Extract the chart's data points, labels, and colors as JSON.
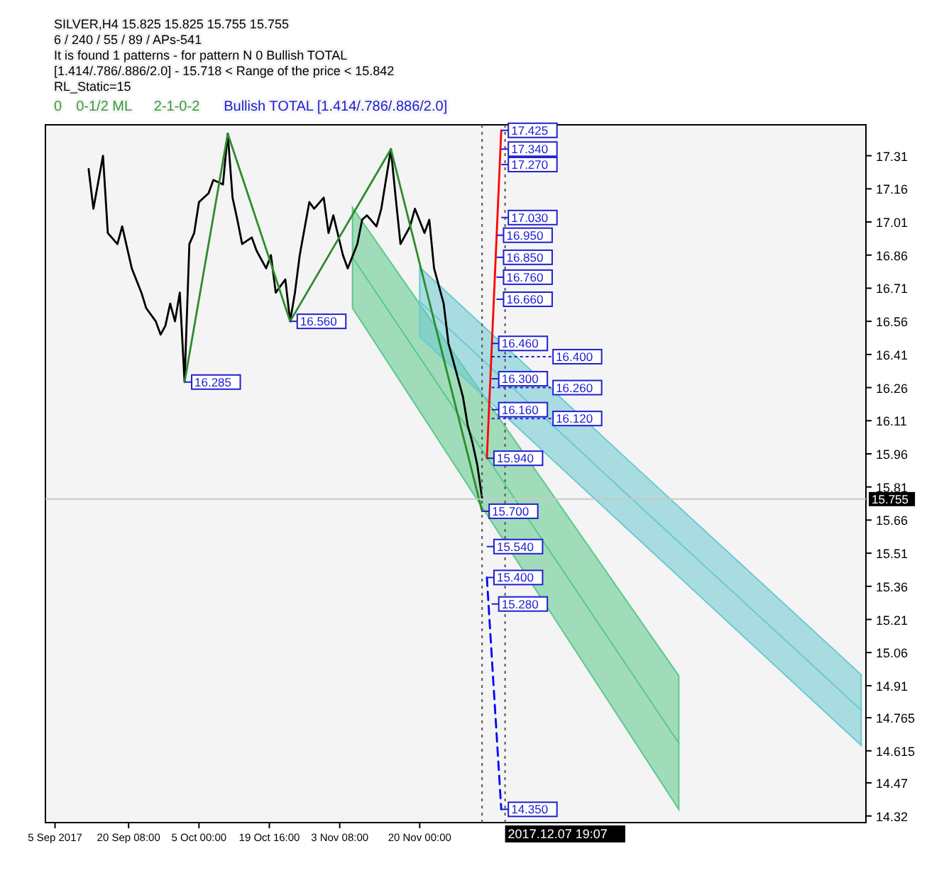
{
  "chart_data": {
    "type": "line",
    "title": "SILVER,H4  15.825 15.825 15.755 15.755",
    "subtitle": "6 / 240 / 55 / 89 / APs-541",
    "xlim": [
      "2017-09-03",
      "2018-02-21"
    ],
    "ylim": [
      14.29,
      17.45
    ],
    "xticks": [
      {
        "value": "2017-09-05",
        "label": "5 Sep 2017"
      },
      {
        "value": "2017-09-20T08:00",
        "label": "20 Sep 08:00"
      },
      {
        "value": "2017-10-05T00:00",
        "label": "5 Oct 00:00"
      },
      {
        "value": "2017-10-19T16:00",
        "label": "19 Oct 16:00"
      },
      {
        "value": "2017-11-03T08:00",
        "label": "3 Nov 08:00"
      },
      {
        "value": "2017-11-20T00:00",
        "label": "20 Nov 00:00"
      }
    ],
    "yticks": [
      17.31,
      17.16,
      17.01,
      16.86,
      16.71,
      16.56,
      16.41,
      16.26,
      16.11,
      15.96,
      15.81,
      15.66,
      15.51,
      15.36,
      15.21,
      15.06,
      14.91,
      14.765,
      14.615,
      14.47,
      14.32
    ],
    "series": [
      {
        "color": "#5cc98a",
        "x": [
          "2017-11-06",
          "2017-12-10",
          "2018-01-13"
        ],
        "values": [
          16.85,
          15.75,
          14.65
        ],
        "lower": [
          16.62,
          15.485,
          14.35
        ],
        "upper": [
          17.075,
          16.015,
          14.955
        ]
      },
      {
        "color": "#6cc9d2",
        "x": [
          "2017-11-20",
          "2018-01-05",
          "2018-02-20"
        ],
        "values": [
          16.65,
          15.72,
          14.8
        ],
        "lower": [
          16.49,
          15.565,
          14.64
        ],
        "upper": [
          16.805,
          15.88,
          14.96
        ]
      },
      {
        "color": "#000000",
        "x": [
          "2017-09-12",
          "2017-09-13",
          "2017-09-15",
          "2017-09-16",
          "2017-09-18",
          "2017-09-19",
          "2017-09-21",
          "2017-09-23",
          "2017-09-24",
          "2017-09-26",
          "2017-09-27",
          "2017-09-28",
          "2017-09-29",
          "2017-09-30",
          "2017-10-01",
          "2017-10-02",
          "2017-10-03",
          "2017-10-04",
          "2017-10-05",
          "2017-10-07",
          "2017-10-08",
          "2017-10-10",
          "2017-10-11",
          "2017-10-12",
          "2017-10-13",
          "2017-10-14",
          "2017-10-16",
          "2017-10-17",
          "2017-10-19",
          "2017-10-20",
          "2017-10-21",
          "2017-10-23",
          "2017-10-24",
          "2017-10-25",
          "2017-10-26",
          "2017-10-28",
          "2017-10-29",
          "2017-10-31",
          "2017-11-01",
          "2017-11-02",
          "2017-11-04",
          "2017-11-05",
          "2017-11-07",
          "2017-11-08",
          "2017-11-09",
          "2017-11-11",
          "2017-11-12",
          "2017-11-14",
          "2017-11-15",
          "2017-11-16",
          "2017-11-18",
          "2017-11-19",
          "2017-11-21",
          "2017-11-22",
          "2017-11-23",
          "2017-11-25",
          "2017-11-26",
          "2017-11-27",
          "2017-11-28",
          "2017-11-29",
          "2017-11-30",
          "2017-12-01",
          "2017-12-02",
          "2017-12-03"
        ],
        "values": [
          17.25,
          17.07,
          17.31,
          16.96,
          16.91,
          16.99,
          16.8,
          16.69,
          16.62,
          16.56,
          16.5,
          16.54,
          16.64,
          16.56,
          16.69,
          16.285,
          16.91,
          16.96,
          17.1,
          17.14,
          17.2,
          17.18,
          17.41,
          17.12,
          17.02,
          16.91,
          16.94,
          16.88,
          16.8,
          16.86,
          16.69,
          16.75,
          16.56,
          16.69,
          16.86,
          17.1,
          17.07,
          17.12,
          16.96,
          17.04,
          16.86,
          16.8,
          16.91,
          17.02,
          17.04,
          16.99,
          17.07,
          17.34,
          17.12,
          16.91,
          16.99,
          17.07,
          16.96,
          17.02,
          16.8,
          16.64,
          16.46,
          16.38,
          16.3,
          16.22,
          16.09,
          16.01,
          15.91,
          15.76
        ]
      },
      {
        "color": "#2e8b2e",
        "x": [
          "2017-10-02",
          "2017-10-11",
          "2017-10-24",
          "2017-11-14",
          "2017-12-03"
        ],
        "values": [
          16.285,
          17.41,
          16.56,
          17.34,
          15.7
        ]
      },
      {
        "color": "#ff0000",
        "x": [
          "2017-12-04",
          "2017-12-07"
        ],
        "values": [
          15.94,
          17.425
        ]
      },
      {
        "color": "#0000ff",
        "line_style": "dashed",
        "x": [
          "2017-12-04",
          "2017-12-07"
        ],
        "values": [
          15.4,
          14.35
        ]
      }
    ],
    "ref_lines": [
      {
        "axis": "x",
        "value": "2017-12-03",
        "line_style": "dotted"
      },
      {
        "axis": "x",
        "value": "2017-12-07T19:07",
        "label": "2017.12.07 19:07",
        "line_style": "dotted"
      },
      {
        "axis": "y",
        "value": 15.755,
        "label": "15.755",
        "color": "#c8c8c8"
      }
    ],
    "annotations": [
      "It is found 1 patterns  -  for pattern N 0 Bullish TOTAL [1.414/.786/.886/2.0] - 15.718 < Range of the price < 15.842",
      "RL_Static=15",
      "0",
      "0-1/2 ML",
      "2-1-0-2",
      "Bullish TOTAL [1.414/.786/.886/2.0]",
      {
        "text": "17.425",
        "x": "2017-12-07",
        "y": 17.425
      },
      {
        "text": "17.340",
        "x": "2017-12-07",
        "y": 17.34
      },
      {
        "text": "17.270",
        "x": "2017-12-07",
        "y": 17.27
      },
      {
        "text": "17.030",
        "x": "2017-12-07",
        "y": 17.03
      },
      {
        "text": "16.950",
        "x": "2017-12-06",
        "y": 16.95
      },
      {
        "text": "16.850",
        "x": "2017-12-06",
        "y": 16.85
      },
      {
        "text": "16.760",
        "x": "2017-12-06",
        "y": 16.76
      },
      {
        "text": "16.660",
        "x": "2017-12-06",
        "y": 16.66
      },
      {
        "text": "16.460",
        "x": "2017-12-05",
        "y": 16.46
      },
      {
        "text": "16.400",
        "x": "2017-12-05",
        "y": 16.4
      },
      {
        "text": "16.300",
        "x": "2017-12-05",
        "y": 16.3
      },
      {
        "text": "16.260",
        "x": "2017-12-05",
        "y": 16.26
      },
      {
        "text": "16.160",
        "x": "2017-12-05",
        "y": 16.16
      },
      {
        "text": "16.120",
        "x": "2017-12-05",
        "y": 16.12
      },
      {
        "text": "15.940",
        "x": "2017-12-04",
        "y": 15.94
      },
      {
        "text": "15.700",
        "x": "2017-12-03",
        "y": 15.7
      },
      {
        "text": "15.540",
        "x": "2017-12-04",
        "y": 15.54
      },
      {
        "text": "15.400",
        "x": "2017-12-04",
        "y": 15.4
      },
      {
        "text": "15.280",
        "x": "2017-12-05",
        "y": 15.28
      },
      {
        "text": "14.350",
        "x": "2017-12-07",
        "y": 14.35
      },
      {
        "text": "16.560",
        "x": "2017-10-24",
        "y": 16.56
      },
      {
        "text": "16.285",
        "x": "2017-10-02",
        "y": 16.285
      }
    ]
  }
}
